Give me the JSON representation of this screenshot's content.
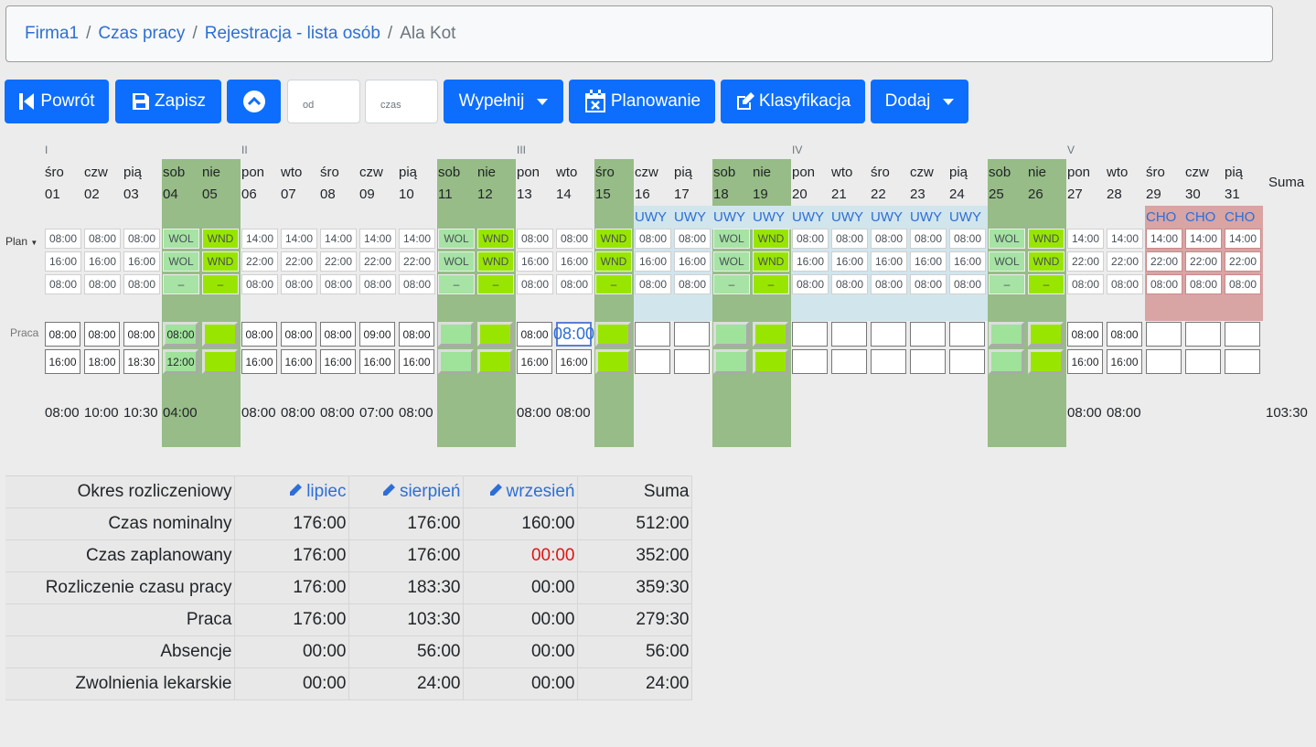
{
  "breadcrumb": {
    "items": [
      "Firma1",
      "Czas pracy",
      "Rejestracja - lista osób"
    ],
    "current": "Ala Kot"
  },
  "toolbar": {
    "back": "Powrót",
    "save": "Zapisz",
    "from_placeholder": "od",
    "time_placeholder": "czas",
    "fill": "Wypełnij",
    "planning": "Planowanie",
    "classification": "Klasyfikacja",
    "add": "Dodaj"
  },
  "calendar": {
    "labels": {
      "plan": "Plan",
      "work": "Praca",
      "sum": "Suma",
      "total": "103:30"
    },
    "weeks": [
      "I",
      "II",
      "III",
      "IV",
      "V"
    ],
    "days": [
      {
        "n": "śro",
        "d": "01",
        "p": [
          "08:00",
          "16:00",
          "08:00"
        ],
        "w": [
          "08:00",
          "16:00"
        ],
        "t": "08:00"
      },
      {
        "n": "czw",
        "d": "02",
        "p": [
          "08:00",
          "16:00",
          "08:00"
        ],
        "w": [
          "08:00",
          "18:00"
        ],
        "t": "10:00"
      },
      {
        "n": "pią",
        "d": "03",
        "p": [
          "08:00",
          "16:00",
          "08:00"
        ],
        "w": [
          "08:00",
          "18:30"
        ],
        "t": "10:30"
      },
      {
        "n": "sob",
        "d": "04",
        "p": [
          "WOL",
          "WOL",
          "–"
        ],
        "w": [
          "08:00",
          "12:00"
        ],
        "t": "04:00"
      },
      {
        "n": "nie",
        "d": "05",
        "p": [
          "WND",
          "WND",
          "–"
        ],
        "w": [
          "",
          ""
        ],
        "t": ""
      },
      {
        "n": "pon",
        "d": "06",
        "p": [
          "14:00",
          "22:00",
          "08:00"
        ],
        "w": [
          "08:00",
          "16:00"
        ],
        "t": "08:00"
      },
      {
        "n": "wto",
        "d": "07",
        "p": [
          "14:00",
          "22:00",
          "08:00"
        ],
        "w": [
          "08:00",
          "16:00"
        ],
        "t": "08:00"
      },
      {
        "n": "śro",
        "d": "08",
        "p": [
          "14:00",
          "22:00",
          "08:00"
        ],
        "w": [
          "08:00",
          "16:00"
        ],
        "t": "08:00"
      },
      {
        "n": "czw",
        "d": "09",
        "p": [
          "14:00",
          "22:00",
          "08:00"
        ],
        "w": [
          "09:00",
          "16:00"
        ],
        "t": "07:00"
      },
      {
        "n": "pią",
        "d": "10",
        "p": [
          "14:00",
          "22:00",
          "08:00"
        ],
        "w": [
          "08:00",
          "16:00"
        ],
        "t": "08:00"
      },
      {
        "n": "sob",
        "d": "11",
        "p": [
          "WOL",
          "WOL",
          "–"
        ],
        "w": [
          "",
          ""
        ],
        "t": ""
      },
      {
        "n": "nie",
        "d": "12",
        "p": [
          "WND",
          "WND",
          "–"
        ],
        "w": [
          "",
          ""
        ],
        "t": ""
      },
      {
        "n": "pon",
        "d": "13",
        "p": [
          "08:00",
          "16:00",
          "08:00"
        ],
        "w": [
          "08:00",
          "16:00"
        ],
        "t": "08:00"
      },
      {
        "n": "wto",
        "d": "14",
        "p": [
          "08:00",
          "16:00",
          "08:00"
        ],
        "w": [
          "08:00",
          "16:00"
        ],
        "t": "08:00"
      },
      {
        "n": "śro",
        "d": "15",
        "p": [
          "WND",
          "WND",
          "–"
        ],
        "w": [
          "",
          ""
        ],
        "t": ""
      },
      {
        "n": "czw",
        "d": "16",
        "a": "UWY",
        "p": [
          "08:00",
          "16:00",
          "08:00"
        ],
        "w": [
          "",
          ""
        ],
        "t": ""
      },
      {
        "n": "pią",
        "d": "17",
        "a": "UWY",
        "p": [
          "08:00",
          "16:00",
          "08:00"
        ],
        "w": [
          "",
          ""
        ],
        "t": ""
      },
      {
        "n": "sob",
        "d": "18",
        "a": "UWY",
        "p": [
          "WOL",
          "WOL",
          "–"
        ],
        "w": [
          "",
          ""
        ],
        "t": ""
      },
      {
        "n": "nie",
        "d": "19",
        "a": "UWY",
        "p": [
          "WND",
          "WND",
          "–"
        ],
        "w": [
          "",
          ""
        ],
        "t": ""
      },
      {
        "n": "pon",
        "d": "20",
        "a": "UWY",
        "p": [
          "08:00",
          "16:00",
          "08:00"
        ],
        "w": [
          "",
          ""
        ],
        "t": ""
      },
      {
        "n": "wto",
        "d": "21",
        "a": "UWY",
        "p": [
          "08:00",
          "16:00",
          "08:00"
        ],
        "w": [
          "",
          ""
        ],
        "t": ""
      },
      {
        "n": "śro",
        "d": "22",
        "a": "UWY",
        "p": [
          "08:00",
          "16:00",
          "08:00"
        ],
        "w": [
          "",
          ""
        ],
        "t": ""
      },
      {
        "n": "czw",
        "d": "23",
        "a": "UWY",
        "p": [
          "08:00",
          "16:00",
          "08:00"
        ],
        "w": [
          "",
          ""
        ],
        "t": ""
      },
      {
        "n": "pią",
        "d": "24",
        "a": "UWY",
        "p": [
          "08:00",
          "16:00",
          "08:00"
        ],
        "w": [
          "",
          ""
        ],
        "t": ""
      },
      {
        "n": "sob",
        "d": "25",
        "p": [
          "WOL",
          "WOL",
          "–"
        ],
        "w": [
          "",
          ""
        ],
        "t": ""
      },
      {
        "n": "nie",
        "d": "26",
        "p": [
          "WND",
          "WND",
          "–"
        ],
        "w": [
          "",
          ""
        ],
        "t": ""
      },
      {
        "n": "pon",
        "d": "27",
        "p": [
          "14:00",
          "22:00",
          "08:00"
        ],
        "w": [
          "08:00",
          "16:00"
        ],
        "t": "08:00"
      },
      {
        "n": "wto",
        "d": "28",
        "p": [
          "14:00",
          "22:00",
          "08:00"
        ],
        "w": [
          "08:00",
          "16:00"
        ],
        "t": "08:00"
      },
      {
        "n": "śro",
        "d": "29",
        "a": "CHO",
        "p": [
          "14:00",
          "22:00",
          "08:00"
        ],
        "w": [
          "",
          ""
        ],
        "t": ""
      },
      {
        "n": "czw",
        "d": "30",
        "a": "CHO",
        "p": [
          "14:00",
          "22:00",
          "08:00"
        ],
        "w": [
          "",
          ""
        ],
        "t": ""
      },
      {
        "n": "pią",
        "d": "31",
        "a": "CHO",
        "p": [
          "14:00",
          "22:00",
          "08:00"
        ],
        "w": [
          "",
          ""
        ],
        "t": ""
      }
    ]
  },
  "summary": {
    "header": [
      "Okres rozliczeniowy",
      "lipiec",
      "sierpień",
      "wrzesień",
      "Suma"
    ],
    "rows": [
      [
        "Czas nominalny",
        "176:00",
        "176:00",
        "160:00",
        "512:00"
      ],
      [
        "Czas zaplanowany",
        "176:00",
        "176:00",
        "00:00",
        "352:00"
      ],
      [
        "Rozliczenie czasu pracy",
        "176:00",
        "183:30",
        "00:00",
        "359:30"
      ],
      [
        "Praca",
        "176:00",
        "103:30",
        "00:00",
        "279:30"
      ],
      [
        "Absencje",
        "00:00",
        "56:00",
        "00:00",
        "56:00"
      ],
      [
        "Zwolnienia lekarskie",
        "00:00",
        "24:00",
        "00:00",
        "24:00"
      ]
    ]
  },
  "colors": {
    "primary": "#0d6efd",
    "weekend": "#97bc87",
    "vacation": "#d1e5ec",
    "leave": "#d8a4a4",
    "wnd": "#98e600",
    "wol": "#a6e3a4"
  },
  "icons": [
    "skip-back-icon",
    "save-icon",
    "chevron-up-icon",
    "calendar-x-icon",
    "edit-icon",
    "pencil-icon"
  ]
}
